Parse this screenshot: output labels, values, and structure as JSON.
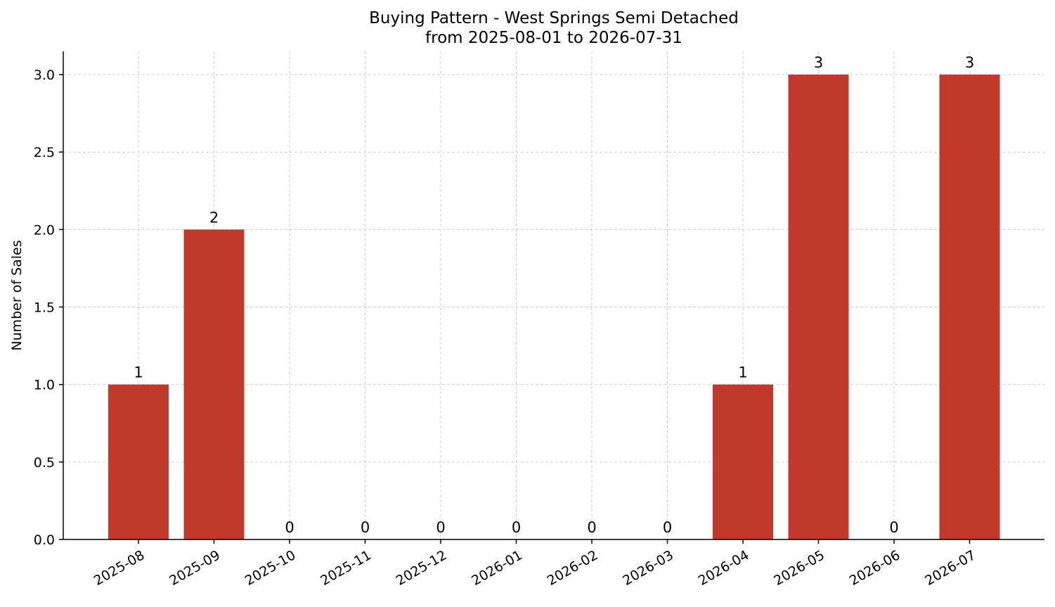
{
  "chart_data": {
    "type": "bar",
    "title": "Buying Pattern - West Springs Semi Detached",
    "subtitle": "from 2025-08-01 to 2026-07-31",
    "xlabel": "",
    "ylabel": "Number of Sales",
    "categories": [
      "2025-08",
      "2025-09",
      "2025-10",
      "2025-11",
      "2025-12",
      "2026-01",
      "2026-02",
      "2026-03",
      "2026-04",
      "2026-05",
      "2026-06",
      "2026-07"
    ],
    "values": [
      1,
      2,
      0,
      0,
      0,
      0,
      0,
      0,
      1,
      3,
      0,
      3
    ],
    "data_labels": [
      "1",
      "2",
      "0",
      "0",
      "0",
      "0",
      "0",
      "0",
      "1",
      "3",
      "0",
      "3"
    ],
    "ylim": [
      0,
      3.15
    ],
    "y_ticks": [
      0.0,
      0.5,
      1.0,
      1.5,
      2.0,
      2.5,
      3.0
    ],
    "y_tick_labels": [
      "0.0",
      "0.5",
      "1.0",
      "1.5",
      "2.0",
      "2.5",
      "3.0"
    ],
    "grid": true,
    "bar_color": "#c0392b",
    "grid_color": "#cccccc"
  }
}
